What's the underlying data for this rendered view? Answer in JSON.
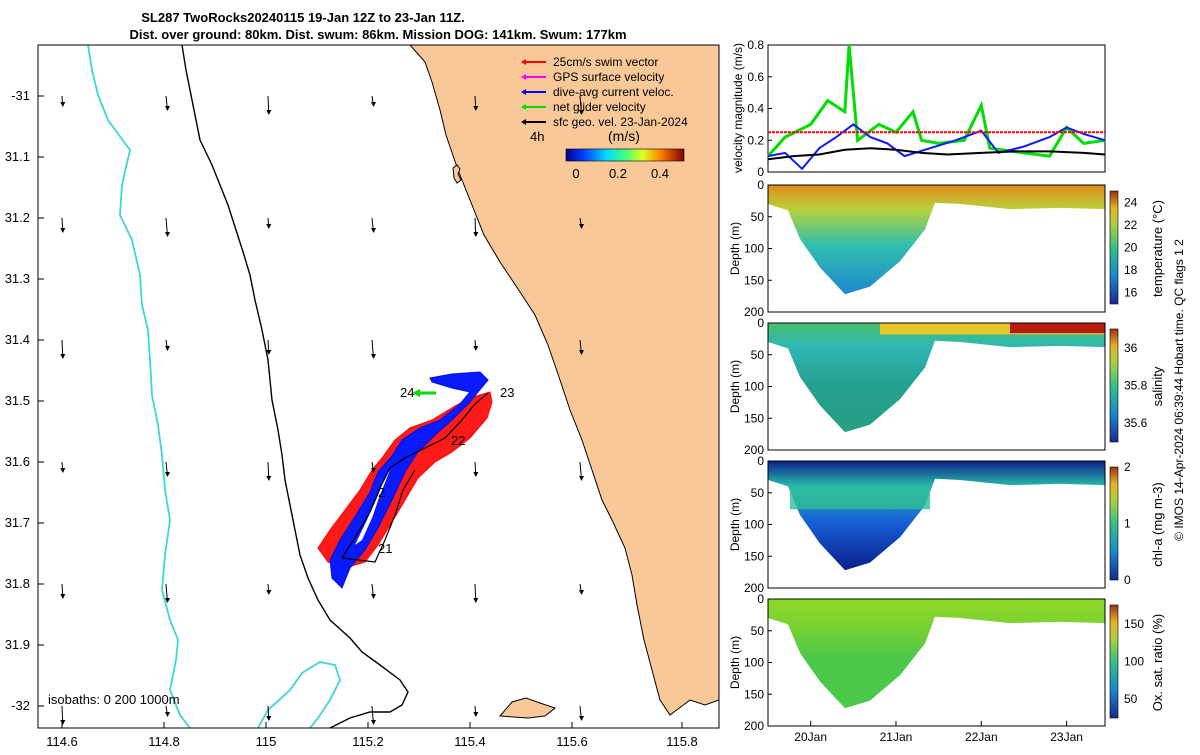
{
  "header": {
    "title_line1": "SL287 TwoRocks20240115 19-Jan 12Z to 23-Jan 11Z.",
    "title_line2": "Dist. over ground: 80km. Dist. swum: 86km. Mission DOG: 141km. Swum: 177km"
  },
  "map": {
    "x_ticks": [
      "114.6",
      "114.8",
      "115",
      "115.2",
      "115.4",
      "115.6",
      "115.8"
    ],
    "y_ticks": [
      "-31",
      "31.1",
      "31.2",
      "31.3",
      "31.4",
      "31.5",
      "31.6",
      "31.7",
      "31.8",
      "31.9",
      "-32"
    ],
    "legend": [
      {
        "label": "25cm/s swim vector",
        "color": "#ff0000"
      },
      {
        "label": "GPS surface velocity",
        "color": "#ff00ff"
      },
      {
        "label": "dive-avg current veloc.",
        "color": "#0000ff"
      },
      {
        "label": "net glider velocity",
        "color": "#00dd00"
      },
      {
        "label": "sfc geo. vel. 23-Jan-2024",
        "color": "#000000"
      }
    ],
    "interval_label": "4h",
    "colorbar_label": "(m/s)",
    "colorbar_ticks": [
      "0",
      "0.2",
      "0.4"
    ],
    "isobaths_label": "isobaths: 0   200  1000m",
    "day_labels": [
      "21",
      "22",
      "23",
      "24"
    ],
    "colors": {
      "land": "#f9c898",
      "isobath_1000": "#3dd6d6",
      "track_red": "#ff0000",
      "track_blue": "#0a1aff"
    }
  },
  "chart_data": [
    {
      "type": "line",
      "ylabel": "velocity magnitude (m/s)",
      "ylim": [
        0,
        0.8
      ],
      "yticks": [
        "0",
        "0.2",
        "0.4",
        "0.6",
        "0.8"
      ],
      "series": [
        {
          "color": "#00dd00",
          "x": [
            19.5,
            19.7,
            20.0,
            20.2,
            20.4,
            20.45,
            20.55,
            20.8,
            21.0,
            21.2,
            21.3,
            21.5,
            21.8,
            22.0,
            22.1,
            22.5,
            22.8,
            23.0,
            23.2,
            23.45
          ],
          "values": [
            0.1,
            0.22,
            0.3,
            0.45,
            0.38,
            0.8,
            0.2,
            0.3,
            0.25,
            0.38,
            0.2,
            0.18,
            0.2,
            0.42,
            0.15,
            0.12,
            0.1,
            0.28,
            0.18,
            0.2
          ]
        },
        {
          "color": "#0a1aff",
          "x": [
            19.5,
            19.7,
            19.9,
            20.1,
            20.3,
            20.5,
            20.7,
            20.9,
            21.1,
            21.4,
            21.7,
            22.0,
            22.2,
            22.5,
            22.8,
            23.0,
            23.2,
            23.45
          ],
          "values": [
            0.1,
            0.12,
            0.02,
            0.15,
            0.22,
            0.3,
            0.22,
            0.18,
            0.1,
            0.15,
            0.2,
            0.26,
            0.12,
            0.16,
            0.22,
            0.28,
            0.24,
            0.2
          ]
        },
        {
          "color": "#000000",
          "x": [
            19.5,
            19.8,
            20.1,
            20.4,
            20.7,
            21.0,
            21.3,
            21.6,
            22.0,
            22.4,
            22.8,
            23.2,
            23.45
          ],
          "values": [
            0.08,
            0.1,
            0.11,
            0.14,
            0.15,
            0.14,
            0.12,
            0.11,
            0.12,
            0.13,
            0.13,
            0.12,
            0.11
          ]
        },
        {
          "color": "#ff0000",
          "x": [
            19.5,
            23.45
          ],
          "values": [
            0.25,
            0.25
          ]
        }
      ]
    },
    {
      "type": "heatmap",
      "ylabel": "Depth (m)",
      "yticks": [
        "0",
        "50",
        "100",
        "150",
        "200"
      ],
      "cbar_label": "temperature (°C)",
      "cbar_ticks": [
        "16",
        "18",
        "20",
        "22",
        "24"
      ],
      "clim": [
        15,
        25
      ]
    },
    {
      "type": "heatmap",
      "ylabel": "Depth (m)",
      "yticks": [
        "0",
        "50",
        "100",
        "150",
        "200"
      ],
      "cbar_label": "salinity",
      "cbar_ticks": [
        "35.6",
        "35.8",
        "36"
      ],
      "clim": [
        35.5,
        36.1
      ]
    },
    {
      "type": "heatmap",
      "ylabel": "Depth (m)",
      "yticks": [
        "0",
        "50",
        "100",
        "150",
        "200"
      ],
      "cbar_label": "chl-a (mg m-3)",
      "cbar_ticks": [
        "0",
        "1",
        "2"
      ],
      "clim": [
        0,
        2
      ]
    },
    {
      "type": "heatmap",
      "ylabel": "Depth (m)",
      "yticks": [
        "0",
        "50",
        "100",
        "150",
        "200"
      ],
      "cbar_label": "Ox. sat. ratio (%)",
      "cbar_ticks": [
        "50",
        "100",
        "150"
      ],
      "clim": [
        25,
        175
      ]
    }
  ],
  "time_axis": {
    "ticks": [
      "20Jan",
      "21Jan",
      "22Jan",
      "23Jan"
    ]
  },
  "side_note": "© IMOS 14-Apr-2024 06:39:44 Hobart time. QC flags 1  2"
}
